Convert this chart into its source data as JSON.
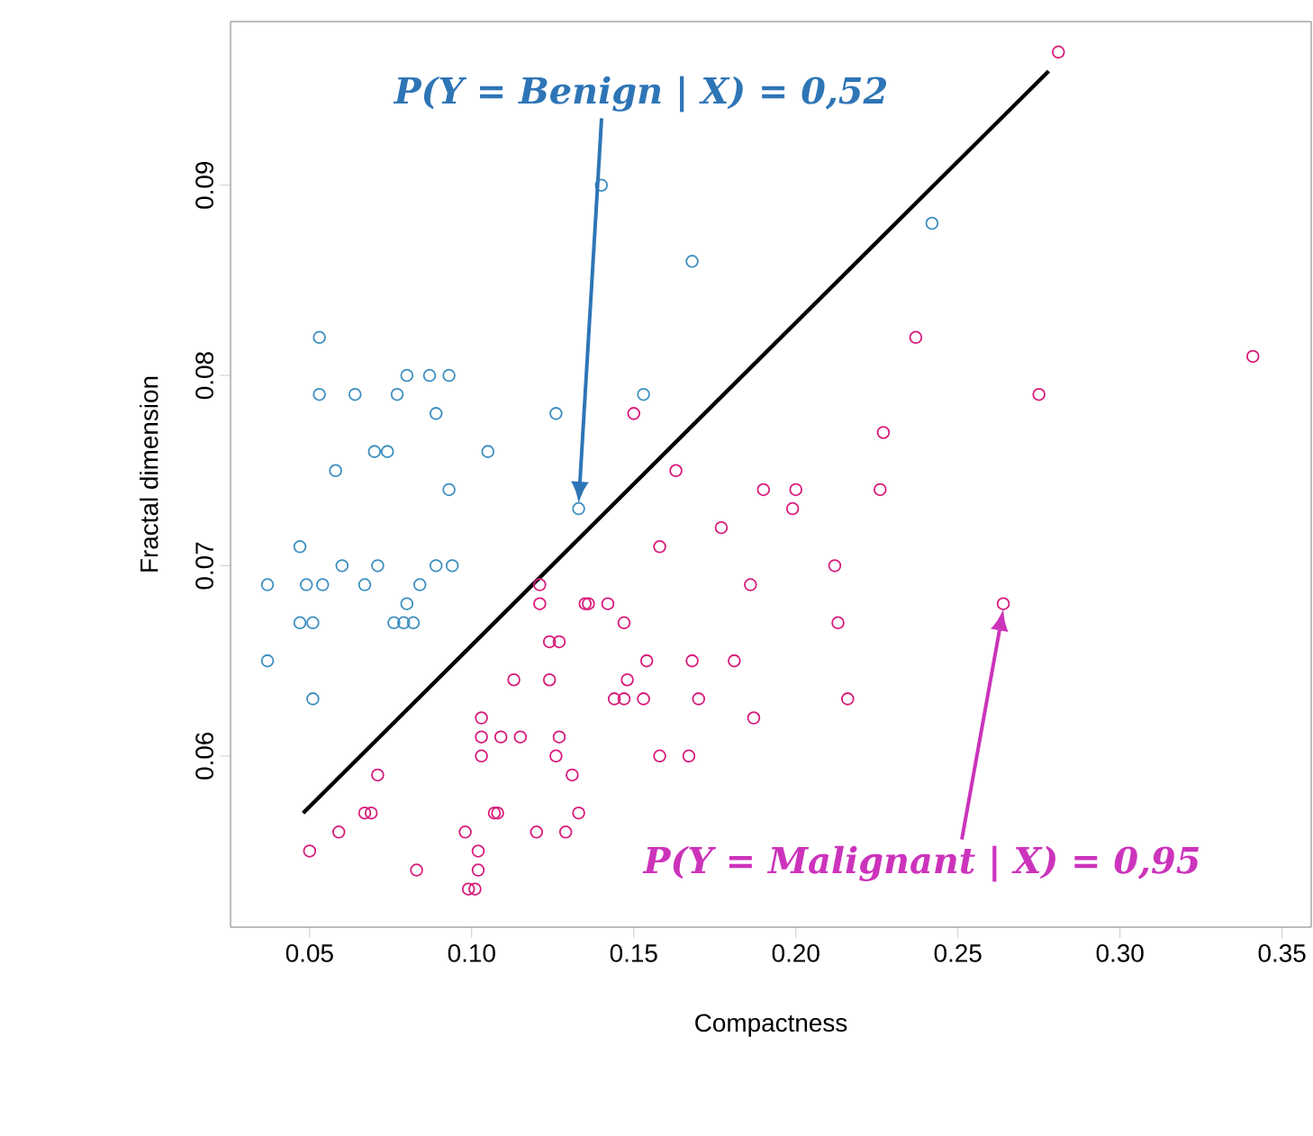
{
  "chart_data": {
    "type": "scatter",
    "xlabel": "Compactness",
    "ylabel": "Fractal dimension",
    "xlim": [
      0.0256,
      0.359
    ],
    "ylim": [
      0.051,
      0.0986
    ],
    "xticks": [
      0.05,
      {
        "value": 0.1,
        "label": "0.10"
      },
      0.15,
      {
        "value": 0.2,
        "label": "0.20"
      },
      0.25,
      {
        "value": 0.3,
        "label": "0.30"
      },
      0.35
    ],
    "yticks": [
      0.06,
      0.07,
      0.08,
      0.09
    ],
    "marker": "circle",
    "grid": false,
    "series": [
      {
        "color": "#3d8fc0",
        "x": [
          0.053,
          0.053,
          0.064,
          0.077,
          0.08,
          0.087,
          0.093,
          0.089,
          0.126,
          0.07,
          0.074,
          0.105,
          0.058,
          0.093,
          0.133,
          0.047,
          0.06,
          0.071,
          0.089,
          0.094,
          0.037,
          0.049,
          0.054,
          0.067,
          0.084,
          0.08,
          0.047,
          0.051,
          0.076,
          0.079,
          0.082,
          0.037,
          0.051,
          0.14,
          0.168,
          0.242,
          0.153
        ],
        "values": [
          0.082,
          0.079,
          0.079,
          0.079,
          0.08,
          0.08,
          0.08,
          0.078,
          0.078,
          0.076,
          0.076,
          0.076,
          0.075,
          0.074,
          0.073,
          0.071,
          0.07,
          0.07,
          0.07,
          0.07,
          0.069,
          0.069,
          0.069,
          0.069,
          0.069,
          0.068,
          0.067,
          0.067,
          0.067,
          0.067,
          0.067,
          0.065,
          0.063,
          0.09,
          0.086,
          0.088,
          0.079
        ]
      },
      {
        "color": "#d81b7a",
        "x": [
          0.121,
          0.121,
          0.135,
          0.124,
          0.127,
          0.113,
          0.124,
          0.103,
          0.103,
          0.109,
          0.115,
          0.103,
          0.127,
          0.126,
          0.131,
          0.071,
          0.067,
          0.069,
          0.107,
          0.108,
          0.133,
          0.059,
          0.098,
          0.12,
          0.129,
          0.05,
          0.102,
          0.102,
          0.083,
          0.099,
          0.101,
          0.15,
          0.163,
          0.19,
          0.2,
          0.199,
          0.177,
          0.158,
          0.186,
          0.136,
          0.142,
          0.147,
          0.154,
          0.168,
          0.181,
          0.148,
          0.144,
          0.147,
          0.153,
          0.17,
          0.187,
          0.158,
          0.167,
          0.281,
          0.237,
          0.341,
          0.275,
          0.227,
          0.226,
          0.212,
          0.213,
          0.264,
          0.216
        ],
        "values": [
          0.069,
          0.068,
          0.068,
          0.066,
          0.066,
          0.064,
          0.064,
          0.062,
          0.061,
          0.061,
          0.061,
          0.06,
          0.061,
          0.06,
          0.059,
          0.059,
          0.057,
          0.057,
          0.057,
          0.057,
          0.057,
          0.056,
          0.056,
          0.056,
          0.056,
          0.055,
          0.055,
          0.054,
          0.054,
          0.053,
          0.053,
          0.078,
          0.075,
          0.074,
          0.074,
          0.073,
          0.072,
          0.071,
          0.069,
          0.068,
          0.068,
          0.067,
          0.065,
          0.065,
          0.065,
          0.064,
          0.063,
          0.063,
          0.063,
          0.063,
          0.062,
          0.06,
          0.06,
          0.097,
          0.082,
          0.081,
          0.079,
          0.077,
          0.074,
          0.07,
          0.067,
          0.068,
          0.063
        ]
      },
      {
        "type": "line",
        "marker": "none",
        "color": "#000000",
        "x": [
          0.048,
          0.278
        ],
        "values": [
          0.057,
          0.096
        ]
      }
    ],
    "annotations": [
      "P(Y = Benign | X) = 0,52",
      "P(Y = Malignant | X) = 0,95"
    ]
  }
}
